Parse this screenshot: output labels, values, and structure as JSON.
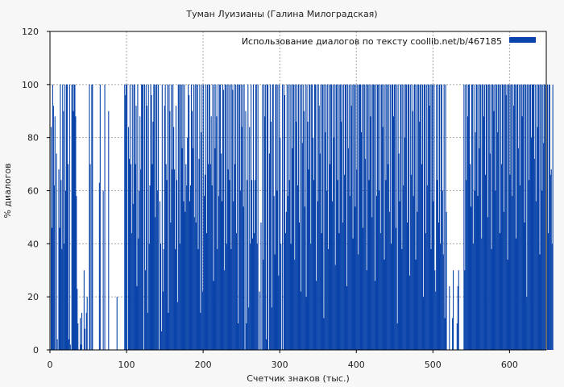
{
  "chart_data": {
    "type": "bar",
    "title": "Туман Луизианы (Галина Милоградская)",
    "xlabel": "Счетчик знаков (тыс.)",
    "ylabel": "% диалогов",
    "xlim": [
      0,
      648
    ],
    "ylim": [
      0,
      120
    ],
    "x_ticks": [
      0,
      100,
      200,
      300,
      400,
      500,
      600
    ],
    "y_ticks": [
      0,
      20,
      40,
      60,
      80,
      100,
      120
    ],
    "grid": true,
    "legend_position": "top-right",
    "series": [
      {
        "name": "Использование диалогов по тексту  coollib.net/b/467185",
        "color": "#0a44aa",
        "bin_width": 1,
        "values": [
          0,
          84,
          46,
          100,
          92,
          62,
          88,
          0,
          74,
          4,
          0,
          68,
          46,
          100,
          64,
          38,
          100,
          90,
          40,
          100,
          60,
          100,
          100,
          70,
          4,
          100,
          2,
          0,
          100,
          100,
          90,
          100,
          100,
          88,
          58,
          23,
          10,
          0,
          0,
          12,
          2,
          14,
          0,
          0,
          30,
          8,
          0,
          14,
          20,
          0,
          0,
          100,
          70,
          0,
          100,
          100,
          0,
          0,
          0,
          0,
          0,
          0,
          0,
          0,
          63,
          100,
          0,
          0,
          0,
          60,
          0,
          100,
          0,
          0,
          0,
          0,
          90,
          0,
          0,
          0,
          0,
          0,
          0,
          0,
          0,
          0,
          0,
          20,
          0,
          0,
          0,
          0,
          0,
          0,
          0,
          0,
          0,
          100,
          96,
          100,
          100,
          0,
          84,
          72,
          100,
          70,
          44,
          100,
          55,
          100,
          100,
          70,
          92,
          24,
          100,
          42,
          60,
          88,
          68,
          100,
          100,
          100,
          0,
          100,
          30,
          100,
          92,
          14,
          100,
          40,
          62,
          100,
          96,
          70,
          86,
          100,
          100,
          50,
          100,
          100,
          60,
          100,
          0,
          56,
          40,
          7,
          100,
          22,
          38,
          92,
          100,
          70,
          64,
          100,
          14,
          100,
          90,
          48,
          100,
          68,
          100,
          84,
          68,
          38,
          92,
          64,
          18,
          100,
          100,
          40,
          100,
          100,
          76,
          100,
          56,
          100,
          52,
          70,
          62,
          80,
          100,
          96,
          56,
          62,
          100,
          90,
          76,
          100,
          50,
          100,
          48,
          100,
          100,
          38,
          72,
          100,
          14,
          82,
          100,
          22,
          100,
          58,
          66,
          100,
          44,
          100,
          70,
          100,
          100,
          70,
          88,
          62,
          100,
          26,
          100,
          76,
          100,
          88,
          38,
          100,
          58,
          100,
          100,
          74,
          56,
          100,
          98,
          30,
          100,
          100,
          40,
          100,
          68,
          100,
          64,
          100,
          38,
          100,
          98,
          56,
          100,
          70,
          100,
          44,
          100,
          10,
          100,
          100,
          60,
          100,
          84,
          100,
          54,
          100,
          0,
          90,
          10,
          64,
          100,
          16,
          84,
          40,
          100,
          64,
          42,
          100,
          44,
          64,
          100,
          100,
          40,
          100,
          0,
          22,
          0,
          48,
          0,
          100,
          34,
          100,
          88,
          100,
          4,
          100,
          100,
          0,
          74,
          100,
          86,
          16,
          100,
          100,
          58,
          36,
          100,
          100,
          60,
          100,
          28,
          100,
          80,
          40,
          0,
          100,
          0,
          100,
          96,
          44,
          52,
          100,
          58,
          100,
          64,
          100,
          40,
          100,
          76,
          100,
          100,
          34,
          100,
          86,
          100,
          62,
          100,
          48,
          100,
          22,
          100,
          78,
          100,
          90,
          54,
          100,
          20,
          100,
          86,
          68,
          100,
          100,
          40,
          100,
          100,
          80,
          64,
          100,
          100,
          26,
          100,
          56,
          100,
          92,
          74,
          100,
          44,
          100,
          100,
          12,
          100,
          82,
          100,
          60,
          100,
          38,
          100,
          70,
          100,
          100,
          56,
          100,
          80,
          100,
          32,
          100,
          100,
          64,
          100,
          44,
          100,
          100,
          86,
          100,
          48,
          100,
          66,
          100,
          100,
          24,
          100,
          76,
          100,
          58,
          100,
          92,
          100,
          42,
          100,
          100,
          54,
          100,
          68,
          100,
          36,
          100,
          100,
          100,
          82,
          100,
          46,
          100,
          100,
          72,
          100,
          30,
          100,
          100,
          64,
          100,
          88,
          100,
          50,
          100,
          100,
          100,
          26,
          100,
          58,
          100,
          100,
          60,
          100,
          44,
          100,
          100,
          84,
          100,
          34,
          100,
          64,
          100,
          100,
          70,
          100,
          52,
          100,
          40,
          100,
          100,
          88,
          100,
          100,
          46,
          100,
          10,
          100,
          74,
          56,
          100,
          100,
          38,
          100,
          62,
          100,
          80,
          100,
          100,
          48,
          100,
          100,
          28,
          100,
          66,
          100,
          90,
          58,
          100,
          100,
          34,
          100,
          52,
          100,
          100,
          86,
          100,
          100,
          70,
          100,
          20,
          100,
          100,
          44,
          100,
          62,
          100,
          100,
          92,
          100,
          38,
          100,
          100,
          56,
          100,
          30,
          22,
          100,
          64,
          100,
          48,
          100,
          40,
          100,
          100,
          60,
          36,
          100,
          12,
          100,
          52,
          0,
          0,
          0,
          24,
          0,
          0,
          0,
          12,
          30,
          0,
          0,
          0,
          0,
          10,
          24,
          30,
          0,
          0,
          0,
          0,
          0,
          0,
          100,
          30,
          100,
          64,
          100,
          88,
          100,
          100,
          70,
          54,
          100,
          100,
          40,
          100,
          60,
          82,
          100,
          100,
          58,
          100,
          76,
          100,
          100,
          42,
          100,
          100,
          88,
          100,
          66,
          100,
          100,
          50,
          100,
          100,
          74,
          100,
          38,
          100,
          100,
          90,
          100,
          60,
          100,
          100,
          82,
          100,
          100,
          44,
          100,
          70,
          100,
          100,
          52,
          100,
          100,
          96,
          100,
          34,
          100,
          100,
          66,
          100,
          100,
          58,
          100,
          92,
          100,
          100,
          42,
          100,
          100,
          76,
          100,
          62,
          100,
          100,
          88,
          100,
          100,
          48,
          100,
          100,
          20,
          100,
          100,
          64,
          100,
          100,
          80,
          100,
          100,
          100,
          72,
          100,
          56,
          100,
          84,
          100,
          100,
          36,
          100,
          100,
          60,
          100,
          78,
          100,
          100,
          0,
          0,
          100,
          44,
          100,
          100,
          66,
          68,
          40,
          100
        ]
      }
    ]
  }
}
